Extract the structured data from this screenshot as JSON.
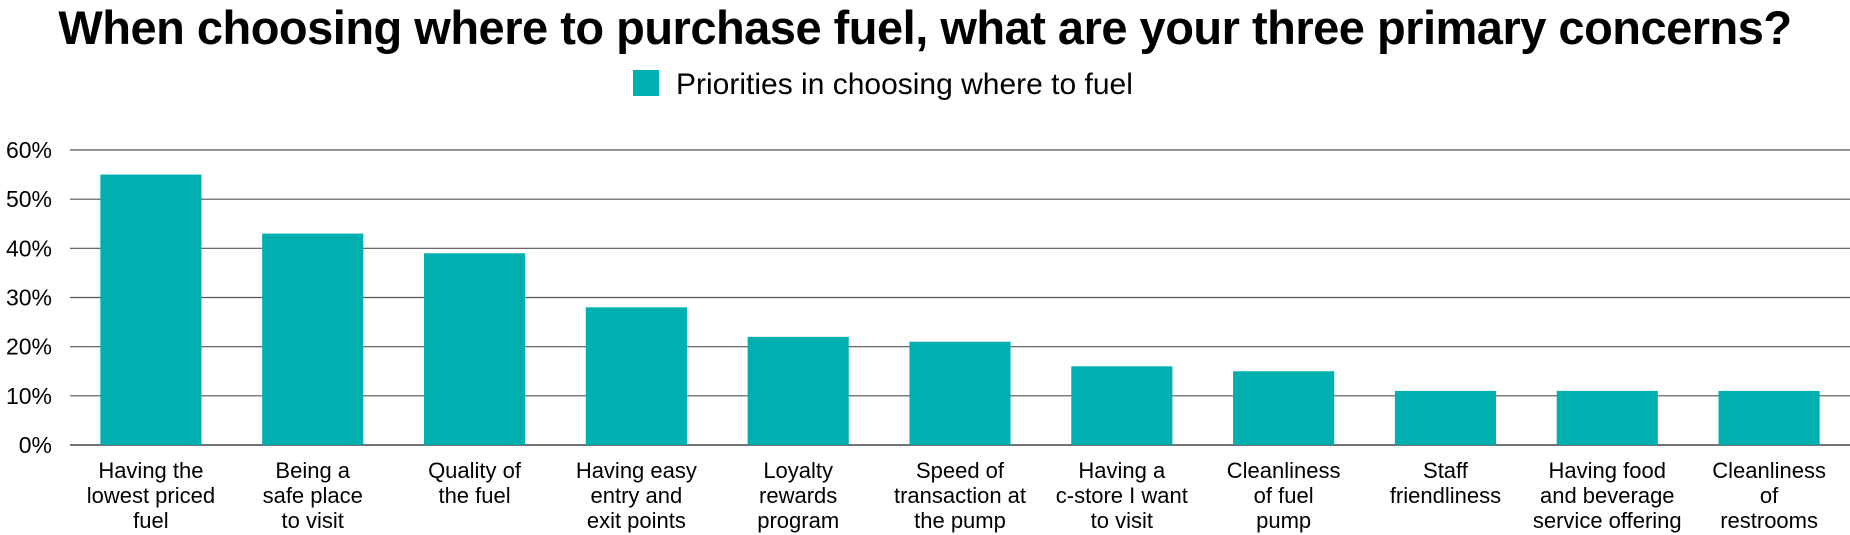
{
  "chart_data": {
    "type": "bar",
    "title": "When choosing where to purchase fuel, what are your three primary concerns?",
    "xlabel": "",
    "ylabel": "",
    "ylim": [
      0,
      60
    ],
    "yticks": [
      "0%",
      "10%",
      "20%",
      "30%",
      "40%",
      "50%",
      "60%"
    ],
    "grid": true,
    "legend_position": "top-center",
    "categories": [
      [
        "Having the",
        "lowest priced",
        "fuel"
      ],
      [
        "Being a",
        "safe place",
        "to visit"
      ],
      [
        "Quality of",
        "the fuel"
      ],
      [
        "Having easy",
        "entry and",
        "exit points"
      ],
      [
        "Loyalty",
        "rewards",
        "program"
      ],
      [
        "Speed of",
        "transaction at",
        "the pump"
      ],
      [
        "Having a",
        "c-store I want",
        "to visit"
      ],
      [
        "Cleanliness",
        "of fuel",
        "pump"
      ],
      [
        "Staff",
        "friendliness"
      ],
      [
        "Having food",
        "and beverage",
        "service offering"
      ],
      [
        "Cleanliness",
        "of",
        "restrooms"
      ]
    ],
    "series": [
      {
        "name": "Priorities in choosing where to fuel",
        "color": "#00b0b0",
        "values": [
          55,
          43,
          39,
          28,
          22,
          21,
          16,
          15,
          11,
          11,
          11
        ]
      }
    ]
  }
}
